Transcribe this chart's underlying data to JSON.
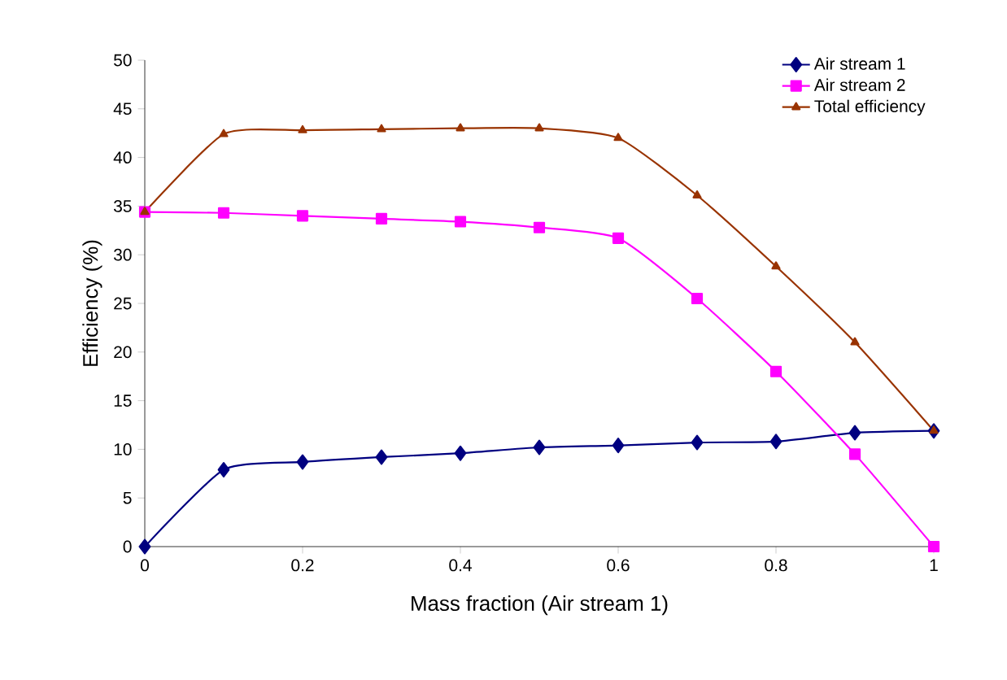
{
  "chart_data": {
    "type": "line",
    "xlabel": "Mass fraction (Air stream 1)",
    "ylabel": "Efficiency (%)",
    "x": [
      0,
      0.1,
      0.2,
      0.3,
      0.4,
      0.5,
      0.6,
      0.7,
      0.8,
      0.9,
      1
    ],
    "series": [
      {
        "name": "Air stream 1",
        "color": "#000080",
        "marker": "diamond",
        "values": [
          0,
          7.9,
          8.7,
          9.2,
          9.6,
          10.2,
          10.4,
          10.7,
          10.8,
          11.7,
          11.9
        ]
      },
      {
        "name": "Air stream 2",
        "color": "#ff00ff",
        "marker": "square",
        "values": [
          34.4,
          34.3,
          34.0,
          33.7,
          33.4,
          32.8,
          31.7,
          25.5,
          18.0,
          9.5,
          0
        ]
      },
      {
        "name": "Total efficiency",
        "color": "#993300",
        "marker": "triangle",
        "values": [
          34.4,
          42.4,
          42.8,
          42.9,
          43.0,
          43.0,
          42.0,
          36.1,
          28.8,
          21.0,
          11.9
        ]
      }
    ],
    "xlim": [
      0,
      1
    ],
    "ylim": [
      0,
      50
    ],
    "xticks": [
      0,
      0.2,
      0.4,
      0.6,
      0.8,
      1
    ],
    "yticks": [
      0,
      5,
      10,
      15,
      20,
      25,
      30,
      35,
      40,
      45,
      50
    ],
    "legend": "top right",
    "grid": false
  }
}
